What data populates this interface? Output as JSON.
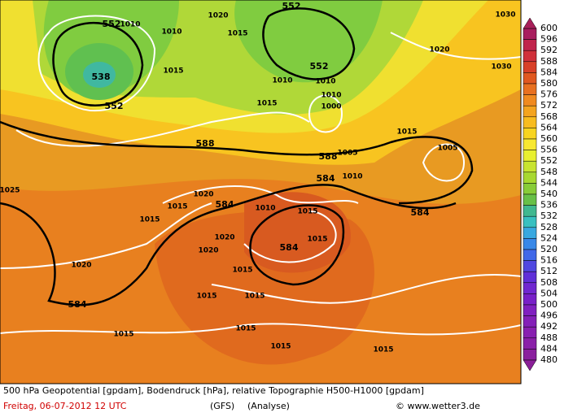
{
  "map": {
    "caption": "500 hPa Geopotential [gpdam], Bodendruck [hPa], relative Topographie H500-H1000 [gpdam]",
    "date": "Freitag, 06-07-2012  12 UTC",
    "model": "(GFS)",
    "run": "(Analyse)",
    "credit": "© www.wetter3.de",
    "height_labels": [
      "552",
      "538",
      "552",
      "552",
      "552",
      "588",
      "588",
      "584",
      "584",
      "584",
      "584",
      "584"
    ],
    "pressure_labels": [
      "1010",
      "1010",
      "1020",
      "1015",
      "1015",
      "1010",
      "1010",
      "1010",
      "1005",
      "1000",
      "1015",
      "1030",
      "1020",
      "1030",
      "1025",
      "1010",
      "1005",
      "1015",
      "1020",
      "1015",
      "1010",
      "1015",
      "1015",
      "1020",
      "1020",
      "1015",
      "1015",
      "1015",
      "1015",
      "1015",
      "1015",
      "1015",
      "1015",
      "1020"
    ],
    "colorbar": {
      "levels": [
        600,
        596,
        592,
        588,
        584,
        580,
        576,
        572,
        568,
        564,
        560,
        556,
        552,
        548,
        544,
        540,
        536,
        532,
        528,
        524,
        520,
        516,
        512,
        508,
        504,
        500,
        496,
        492,
        488,
        484,
        480
      ],
      "colors": [
        "#a81e5e",
        "#c0244c",
        "#d0303a",
        "#d84028",
        "#e05820",
        "#e87020",
        "#f08a20",
        "#f4a420",
        "#f8bc20",
        "#f8d420",
        "#f8e830",
        "#e8f030",
        "#c8e430",
        "#a8d830",
        "#88cc38",
        "#68c048",
        "#40b890",
        "#38c0c0",
        "#38a8e0",
        "#3888e8",
        "#4068e8",
        "#5048e0",
        "#6030d8",
        "#7028d0",
        "#7820c8",
        "#8020c0",
        "#8420b8",
        "#8820b0",
        "#8a20a8",
        "#8a209e"
      ],
      "top_color": "#a8205a",
      "bottom_color": "#8a2098"
    }
  }
}
